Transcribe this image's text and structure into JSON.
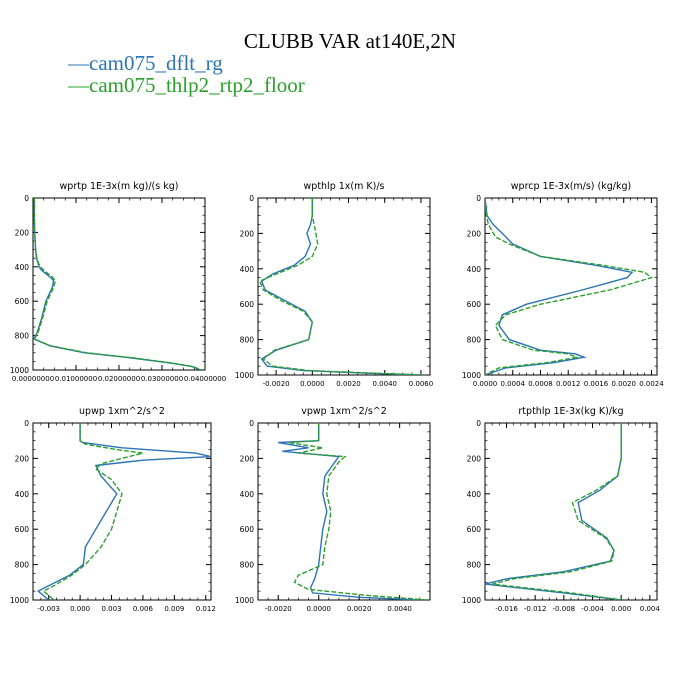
{
  "title": "CLUBB VAR at140E,2N",
  "legend": [
    {
      "label": "cam075_dflt_rg",
      "color": "#2b74b5",
      "dash": "solid"
    },
    {
      "label": "cam075_thlp2_rtp2_floor",
      "color": "#2ca02c",
      "dash": "dashed"
    }
  ],
  "chart_data": [
    {
      "type": "line",
      "title": "wprtp  1E-3x(m kg)/(s kg)",
      "xlim": [
        0,
        0.04
      ],
      "ylim": [
        1000,
        0
      ],
      "xticks": [
        "0.00000000",
        "0.01000000",
        "0.02000000",
        "0.03000000",
        "0.04000000"
      ],
      "xtick_values": [
        0,
        0.01,
        0.02,
        0.03,
        0.04
      ],
      "yticks": [
        0,
        200,
        400,
        600,
        800,
        1000
      ],
      "series": [
        {
          "name": "cam075_dflt_rg",
          "x": [
            0.0003,
            0.0003,
            0.0004,
            0.0006,
            0.0008,
            0.0012,
            0.0014,
            0.002,
            0.003,
            0.004,
            0.0048,
            0.0045,
            0.003,
            0.002,
            0.001,
            0.0002,
            0.004,
            0.012,
            0.023,
            0.032,
            0.037,
            0.039
          ],
          "y": [
            0,
            100,
            200,
            300,
            350,
            380,
            400,
            420,
            440,
            460,
            480,
            520,
            600,
            700,
            780,
            820,
            860,
            900,
            930,
            960,
            980,
            1000
          ]
        },
        {
          "name": "cam075_thlp2_rtp2_floor",
          "x": [
            0.0003,
            0.0003,
            0.0004,
            0.0006,
            0.0009,
            0.0013,
            0.0017,
            0.0025,
            0.0035,
            0.0045,
            0.0052,
            0.0048,
            0.0033,
            0.0022,
            0.0012,
            0.0003,
            0.0042,
            0.0125,
            0.0235,
            0.0325,
            0.0372,
            0.0392
          ],
          "y": [
            0,
            100,
            200,
            300,
            350,
            380,
            400,
            420,
            440,
            460,
            480,
            520,
            600,
            700,
            780,
            820,
            860,
            900,
            930,
            960,
            980,
            1000
          ]
        }
      ]
    },
    {
      "type": "line",
      "title": "wpthlp  1x(m K)/s",
      "xlim": [
        -0.003,
        0.0065
      ],
      "ylim": [
        1000,
        0
      ],
      "xticks": [
        "-0.0020",
        "0.0000",
        "0.0020",
        "0.0040",
        "0.0060"
      ],
      "xtick_values": [
        -0.002,
        0,
        0.002,
        0.004,
        0.006
      ],
      "yticks": [
        0,
        200,
        400,
        600,
        800,
        1000
      ],
      "series": [
        {
          "name": "cam075_dflt_rg",
          "x": [
            0,
            0,
            -0.0001,
            -0.0003,
            -0.0001,
            -0.0004,
            -0.001,
            -0.0022,
            -0.0028,
            -0.0026,
            -0.0015,
            -0.0004,
            0,
            -0.0002,
            -0.002,
            -0.0028,
            -0.0025,
            -0.0005,
            0.003,
            0.006
          ],
          "y": [
            0,
            100,
            150,
            200,
            260,
            330,
            380,
            430,
            470,
            520,
            580,
            640,
            700,
            800,
            860,
            910,
            950,
            975,
            990,
            1000
          ]
        },
        {
          "name": "cam075_thlp2_rtp2_floor",
          "x": [
            0,
            0,
            0.0001,
            0.0002,
            0.0003,
            0,
            -0.0008,
            -0.002,
            -0.0029,
            -0.0027,
            -0.0017,
            -0.0005,
            0,
            -0.0002,
            -0.0021,
            -0.0027,
            -0.0022,
            -0.0002,
            0.0035,
            0.0062
          ],
          "y": [
            0,
            100,
            150,
            200,
            260,
            330,
            380,
            430,
            470,
            520,
            580,
            640,
            700,
            800,
            860,
            910,
            950,
            975,
            990,
            1000
          ]
        }
      ]
    },
    {
      "type": "line",
      "title": "wprcp  1E-3x(m/s) (kg/kg)",
      "xlim": [
        0,
        0.00248
      ],
      "ylim": [
        1000,
        0
      ],
      "xticks": [
        "0.0000",
        "0.0004",
        "0.0008",
        "0.0012",
        "0.0016",
        "0.0020",
        "0.0024"
      ],
      "xtick_values": [
        0,
        0.0004,
        0.0008,
        0.0012,
        0.0016,
        0.002,
        0.0024
      ],
      "yticks": [
        0,
        200,
        400,
        600,
        800,
        1000
      ],
      "series": [
        {
          "name": "cam075_dflt_rg",
          "x": [
            0,
            3e-05,
            0.00012,
            0.0003,
            0.0004,
            0.0008,
            0.0016,
            0.00212,
            0.00205,
            0.0014,
            0.0006,
            0.00025,
            0.0002,
            0.00035,
            0.0008,
            0.0013,
            0.00143,
            0.001,
            0.0003,
            0
          ],
          "y": [
            0,
            100,
            150,
            220,
            260,
            330,
            380,
            420,
            450,
            520,
            600,
            660,
            720,
            800,
            860,
            880,
            900,
            930,
            960,
            1000
          ]
        },
        {
          "name": "cam075_thlp2_rtp2_floor",
          "x": [
            0,
            2e-05,
            5e-05,
            0.00015,
            0.00035,
            0.0008,
            0.0017,
            0.0023,
            0.0024,
            0.0018,
            0.0008,
            0.0003,
            0.00015,
            0.00025,
            0.0007,
            0.0012,
            0.00132,
            0.0009,
            0.0002,
            0
          ],
          "y": [
            0,
            100,
            150,
            220,
            260,
            330,
            380,
            420,
            450,
            520,
            600,
            660,
            720,
            800,
            860,
            880,
            900,
            930,
            960,
            1000
          ]
        }
      ]
    },
    {
      "type": "line",
      "title": "upwp  1xm^2/s^2",
      "xlim": [
        -0.0045,
        0.0125
      ],
      "ylim": [
        1000,
        0
      ],
      "xticks": [
        "-0.003",
        "0.000",
        "0.003",
        "0.006",
        "0.009",
        "0.012"
      ],
      "xtick_values": [
        -0.003,
        0,
        0.003,
        0.006,
        0.009,
        0.012
      ],
      "yticks": [
        0,
        200,
        400,
        600,
        800,
        1000
      ],
      "series": [
        {
          "name": "cam075_dflt_rg",
          "x": [
            0,
            0,
            0.0002,
            0.004,
            0.011,
            0.0125,
            0.006,
            0.0015,
            0.002,
            0.0035,
            0.0025,
            0.0015,
            0.0005,
            0.0003,
            -0.001,
            -0.003,
            -0.004,
            -0.003
          ],
          "y": [
            0,
            100,
            110,
            140,
            170,
            190,
            210,
            240,
            300,
            400,
            500,
            600,
            700,
            800,
            860,
            920,
            950,
            1000
          ]
        },
        {
          "name": "cam075_thlp2_rtp2_floor",
          "x": [
            0,
            0,
            0.0005,
            0.0035,
            0.006,
            0.004,
            0.002,
            0.0015,
            0.003,
            0.004,
            0.0035,
            0.003,
            0.002,
            0.0005,
            -0.0008,
            -0.0025,
            -0.0035,
            -0.0025
          ],
          "y": [
            0,
            100,
            120,
            150,
            170,
            200,
            230,
            260,
            320,
            400,
            500,
            600,
            700,
            800,
            860,
            920,
            950,
            1000
          ]
        }
      ]
    },
    {
      "type": "line",
      "title": "vpwp  1xm^2/s^2",
      "xlim": [
        -0.003,
        0.0055
      ],
      "ylim": [
        1000,
        0
      ],
      "xticks": [
        "-0.0020",
        "0.0000",
        "0.0020",
        "0.0040"
      ],
      "xtick_values": [
        -0.002,
        0,
        0.002,
        0.004
      ],
      "yticks": [
        0,
        200,
        400,
        600,
        800,
        1000
      ],
      "series": [
        {
          "name": "cam075_dflt_rg",
          "x": [
            0,
            0,
            -0.002,
            -0.0005,
            -0.0018,
            0.001,
            0.0008,
            0.0003,
            0.0002,
            0.0004,
            0.0002,
            0.0001,
            0,
            -0.0002,
            -0.0004,
            -0.0003,
            0.002,
            0.005
          ],
          "y": [
            0,
            100,
            110,
            140,
            160,
            190,
            220,
            300,
            400,
            500,
            600,
            700,
            800,
            880,
            930,
            960,
            985,
            1000
          ]
        },
        {
          "name": "cam075_thlp2_rtp2_floor",
          "x": [
            0,
            0,
            -0.0015,
            0.0002,
            -0.001,
            0.0013,
            0.001,
            0.0005,
            0.0004,
            0.0006,
            0.0005,
            0.0003,
            0.0002,
            -0.001,
            -0.0012,
            -0.0005,
            0.0025,
            0.0054
          ],
          "y": [
            0,
            100,
            110,
            140,
            170,
            190,
            220,
            300,
            400,
            500,
            600,
            700,
            800,
            860,
            900,
            940,
            975,
            1000
          ]
        }
      ]
    },
    {
      "type": "line",
      "title": "rtpthlp  1E-3x(kg K)/kg",
      "xlim": [
        -0.019,
        0.005
      ],
      "ylim": [
        1000,
        0
      ],
      "xticks": [
        "-0.016",
        "-0.012",
        "-0.008",
        "-0.004",
        "0.000",
        "0.004"
      ],
      "xtick_values": [
        -0.016,
        -0.012,
        -0.008,
        -0.004,
        0,
        0.004
      ],
      "yticks": [
        0,
        200,
        400,
        600,
        800,
        1000
      ],
      "series": [
        {
          "name": "cam075_dflt_rg",
          "x": [
            0,
            0,
            -0.0005,
            -0.003,
            -0.006,
            -0.0055,
            -0.002,
            -0.001,
            -0.0015,
            -0.008,
            -0.016,
            -0.019,
            -0.008,
            0
          ],
          "y": [
            0,
            200,
            300,
            380,
            450,
            550,
            650,
            720,
            780,
            840,
            880,
            910,
            960,
            1000
          ]
        },
        {
          "name": "cam075_thlp2_rtp2_floor",
          "x": [
            0,
            0,
            -0.0005,
            -0.0035,
            -0.0068,
            -0.006,
            -0.0022,
            -0.001,
            -0.0013,
            -0.007,
            -0.015,
            -0.018,
            -0.007,
            0
          ],
          "y": [
            0,
            200,
            300,
            380,
            450,
            550,
            650,
            720,
            780,
            840,
            880,
            910,
            960,
            1000
          ]
        }
      ]
    }
  ]
}
